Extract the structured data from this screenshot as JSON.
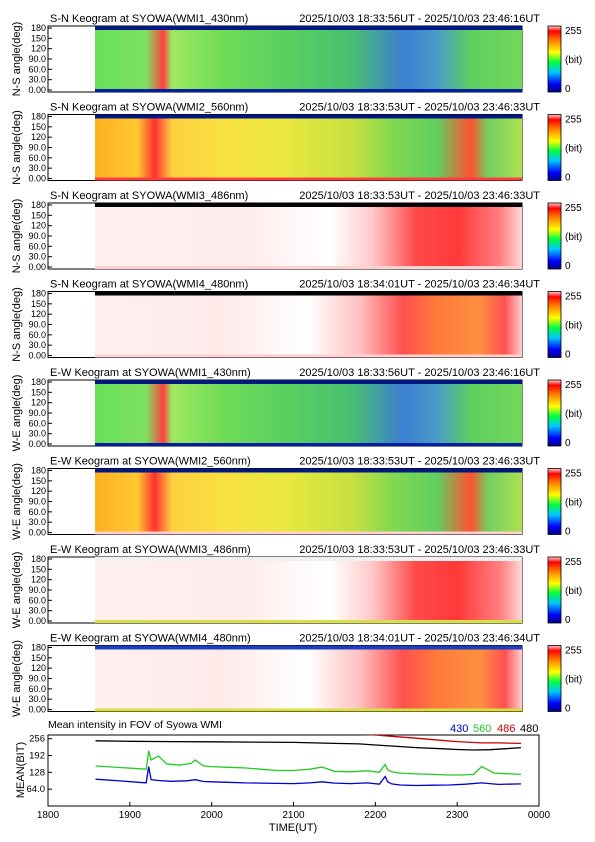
{
  "panels": [
    {
      "title": "S-N Keogram at SYOWA(WMI1_430nm)",
      "range": "2025/10/03 18:33:56UT - 2025/10/03 23:46:16UT",
      "ylabel": "N-S angle(deg)",
      "scheme": "green"
    },
    {
      "title": "S-N Keogram at SYOWA(WMI2_560nm)",
      "range": "2025/10/03 18:33:53UT - 2025/10/03 23:46:33UT",
      "ylabel": "N-S angle(deg)",
      "scheme": "yellow"
    },
    {
      "title": "S-N Keogram at SYOWA(WMI3_486nm)",
      "range": "2025/10/03 18:33:53UT - 2025/10/03 23:46:33UT",
      "ylabel": "N-S angle(deg)",
      "scheme": "pink"
    },
    {
      "title": "S-N Keogram at SYOWA(WMI4_480nm)",
      "range": "2025/10/03 18:34:01UT - 2025/10/03 23:46:34UT",
      "ylabel": "N-S angle(deg)",
      "scheme": "pink2"
    },
    {
      "title": "E-W Keogram at SYOWA(WMI1_430nm)",
      "range": "2025/10/03 18:33:56UT - 2025/10/03 23:46:16UT",
      "ylabel": "W-E angle(deg)",
      "scheme": "green"
    },
    {
      "title": "E-W Keogram at SYOWA(WMI2_560nm)",
      "range": "2025/10/03 18:33:53UT - 2025/10/03 23:46:33UT",
      "ylabel": "W-E angle(deg)",
      "scheme": "yellow"
    },
    {
      "title": "E-W Keogram at SYOWA(WMI3_486nm)",
      "range": "2025/10/03 18:33:53UT - 2025/10/03 23:46:33UT",
      "ylabel": "W-E angle(deg)",
      "scheme": "pink"
    },
    {
      "title": "E-W Keogram at SYOWA(WMI4_480nm)",
      "range": "2025/10/03 18:34:01UT - 2025/10/03 23:46:34UT",
      "ylabel": "W-E angle(deg)",
      "scheme": "pink2"
    }
  ],
  "yticks": [
    "0.00",
    "30.0",
    "60.0",
    "90.0",
    "120",
    "150",
    "180"
  ],
  "colorbar": {
    "max": "255",
    "unit": "(bit)",
    "min": "0"
  },
  "chart_data": {
    "type": "line",
    "title": "Mean intensity in FOV of Syowa WMI",
    "xlabel": "TIME(UT)",
    "ylabel": "MEAN(BIT)",
    "x_ticks": [
      "1800",
      "1900",
      "2000",
      "2100",
      "2200",
      "2300",
      "0000"
    ],
    "xlim_hours": [
      18.0,
      24.0
    ],
    "y_ticks": [
      "64.0",
      "128",
      "192",
      "256"
    ],
    "ylim": [
      0,
      270
    ],
    "series": [
      {
        "name": "430",
        "color": "#0000cc",
        "x": [
          18.58,
          18.9,
          19.2,
          19.23,
          19.26,
          19.35,
          19.5,
          19.7,
          19.8,
          19.9,
          20.0,
          20.2,
          20.4,
          20.6,
          20.8,
          21.0,
          21.2,
          21.35,
          21.5,
          21.7,
          21.9,
          22.05,
          22.12,
          22.15,
          22.2,
          22.3,
          22.5,
          22.7,
          22.9,
          23.1,
          23.3,
          23.5,
          23.78
        ],
        "y": [
          102,
          95,
          88,
          150,
          100,
          97,
          94,
          96,
          100,
          93,
          92,
          90,
          88,
          87,
          86,
          85,
          88,
          92,
          87,
          85,
          88,
          83,
          112,
          92,
          84,
          80,
          78,
          79,
          80,
          83,
          88,
          82,
          84
        ]
      },
      {
        "name": "560",
        "color": "#22cc22",
        "x": [
          18.58,
          18.9,
          19.2,
          19.23,
          19.26,
          19.35,
          19.45,
          19.6,
          19.75,
          19.8,
          19.9,
          20.0,
          20.2,
          20.4,
          20.6,
          20.8,
          21.0,
          21.2,
          21.35,
          21.5,
          21.7,
          21.9,
          22.05,
          22.12,
          22.15,
          22.2,
          22.3,
          22.5,
          22.7,
          22.9,
          23.05,
          23.2,
          23.3,
          23.45,
          23.78
        ],
        "y": [
          152,
          146,
          140,
          210,
          175,
          190,
          160,
          155,
          162,
          175,
          152,
          150,
          147,
          145,
          140,
          135,
          135,
          140,
          148,
          132,
          130,
          134,
          128,
          158,
          138,
          130,
          125,
          122,
          120,
          118,
          118,
          120,
          150,
          125,
          120
        ]
      },
      {
        "name": "486",
        "color": "#cc0000",
        "x": [
          18.58,
          19.0,
          19.5,
          20.0,
          20.5,
          21.0,
          21.5,
          22.0,
          22.2,
          22.5,
          22.8,
          23.0,
          23.3,
          23.5,
          23.78
        ],
        "y": [
          284,
          283,
          282,
          282,
          281,
          280,
          276,
          270,
          265,
          258,
          250,
          245,
          240,
          240,
          238
        ]
      },
      {
        "name": "480",
        "color": "#000000",
        "x": [
          18.58,
          19.0,
          19.5,
          20.0,
          20.5,
          21.0,
          21.5,
          21.8,
          22.0,
          22.2,
          22.5,
          22.8,
          23.0,
          23.2,
          23.4,
          23.6,
          23.78
        ],
        "y": [
          248,
          246,
          245,
          244,
          243,
          242,
          238,
          236,
          232,
          228,
          222,
          218,
          215,
          213,
          214,
          218,
          222
        ]
      }
    ]
  }
}
